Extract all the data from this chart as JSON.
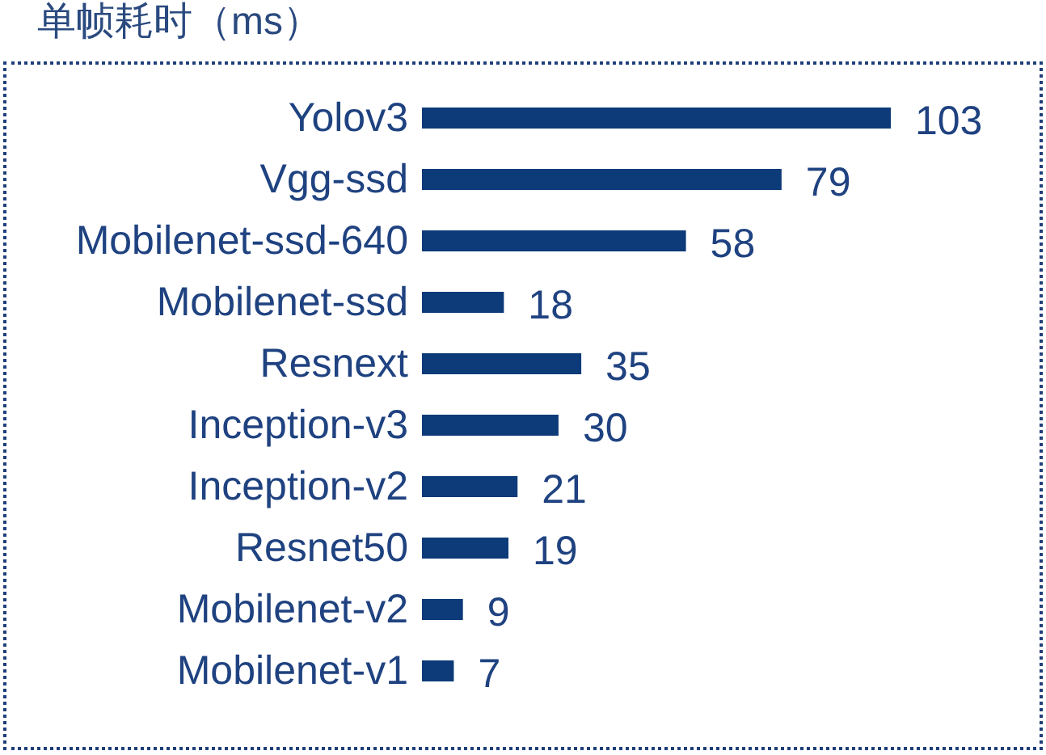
{
  "chart_data": {
    "type": "bar",
    "orientation": "horizontal",
    "title": "单帧耗时（ms）",
    "categories": [
      "Yolov3",
      "Vgg-ssd",
      "Mobilenet-ssd-640",
      "Mobilenet-ssd",
      "Resnext",
      "Inception-v3",
      "Inception-v2",
      "Resnet50",
      "Mobilenet-v2",
      "Mobilenet-v1"
    ],
    "values": [
      103,
      79,
      58,
      18,
      35,
      30,
      21,
      19,
      9,
      7
    ],
    "color": "#0d3a78",
    "data_labels": true,
    "tick_labels": "y"
  }
}
